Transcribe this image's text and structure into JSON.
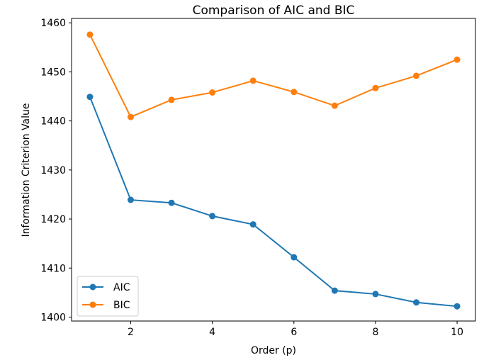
{
  "chart_data": {
    "type": "line",
    "title": "Comparison of AIC and BIC",
    "xlabel": "Order (p)",
    "ylabel": "Information Criterion Value",
    "x": [
      1,
      2,
      3,
      4,
      5,
      6,
      7,
      8,
      9,
      10
    ],
    "xlim": [
      0.55,
      10.45
    ],
    "ylim": [
      1399.2,
      1460.9
    ],
    "xticks": [
      2,
      4,
      6,
      8,
      10
    ],
    "yticks": [
      1400,
      1410,
      1420,
      1430,
      1440,
      1450,
      1460
    ],
    "grid": false,
    "legend_position": "lower-left",
    "series": [
      {
        "name": "AIC",
        "color": "#1f77b4",
        "values": [
          1444.9,
          1423.9,
          1423.3,
          1420.6,
          1418.9,
          1412.2,
          1405.4,
          1404.7,
          1403.0,
          1402.2
        ]
      },
      {
        "name": "BIC",
        "color": "#ff7f0e",
        "values": [
          1457.6,
          1440.8,
          1444.3,
          1445.8,
          1448.2,
          1445.9,
          1443.1,
          1446.7,
          1449.2,
          1452.5
        ]
      }
    ]
  }
}
